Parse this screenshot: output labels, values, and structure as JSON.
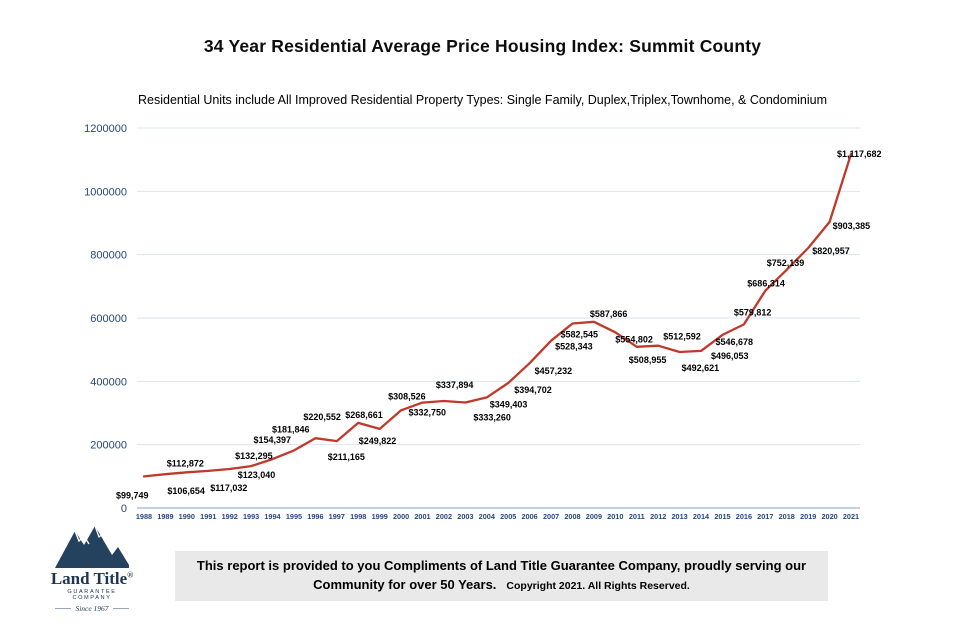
{
  "chart_data": {
    "type": "line",
    "title": "34 Year Residential Average Price Housing Index: Summit County",
    "subtitle": "Residential Units include All Improved Residential Property Types: Single Family, Duplex,Triplex,Townhome, & Condominium",
    "x": [
      1988,
      1989,
      1990,
      1991,
      1992,
      1993,
      1994,
      1995,
      1996,
      1997,
      1998,
      1999,
      2000,
      2001,
      2002,
      2003,
      2004,
      2005,
      2006,
      2007,
      2008,
      2009,
      2010,
      2011,
      2012,
      2013,
      2014,
      2015,
      2016,
      2017,
      2018,
      2019,
      2020,
      2021
    ],
    "values": [
      99749,
      106654,
      112872,
      117032,
      123040,
      132295,
      154397,
      181846,
      220552,
      211165,
      268661,
      249822,
      308526,
      332750,
      337894,
      333260,
      349403,
      394702,
      457232,
      528343,
      582545,
      587866,
      554802,
      508955,
      512592,
      492621,
      496053,
      546678,
      579812,
      686314,
      752139,
      820957,
      903385,
      1117682
    ],
    "data_label_format": "$#,###",
    "ylim": [
      0,
      1200000
    ],
    "ytick_values": [
      0,
      200000,
      400000,
      600000,
      800000,
      1000000,
      1200000
    ],
    "ytick_labels": [
      "0",
      "200000",
      "400000",
      "600000",
      "800000",
      "1000000",
      "1200000"
    ],
    "grid": "horizontal",
    "legend": "none",
    "line_color": "#c0392b",
    "gridline_color": "#dbe5f1",
    "axis_line_color": "#9ab7d9",
    "axis_label_color": "#25477b",
    "label_color": "#000000"
  },
  "logo": {
    "wordmark": "Land Title",
    "registered": "®",
    "subtext": "GUARANTEE COMPANY",
    "since": "Since 1967"
  },
  "footer": {
    "line1": "This report is provided to you Compliments of Land Title Guarantee Company, proudly serving our",
    "line2": "Community for over 50 Years.",
    "copyright": "Copyright 2021.  All Rights Reserved."
  }
}
